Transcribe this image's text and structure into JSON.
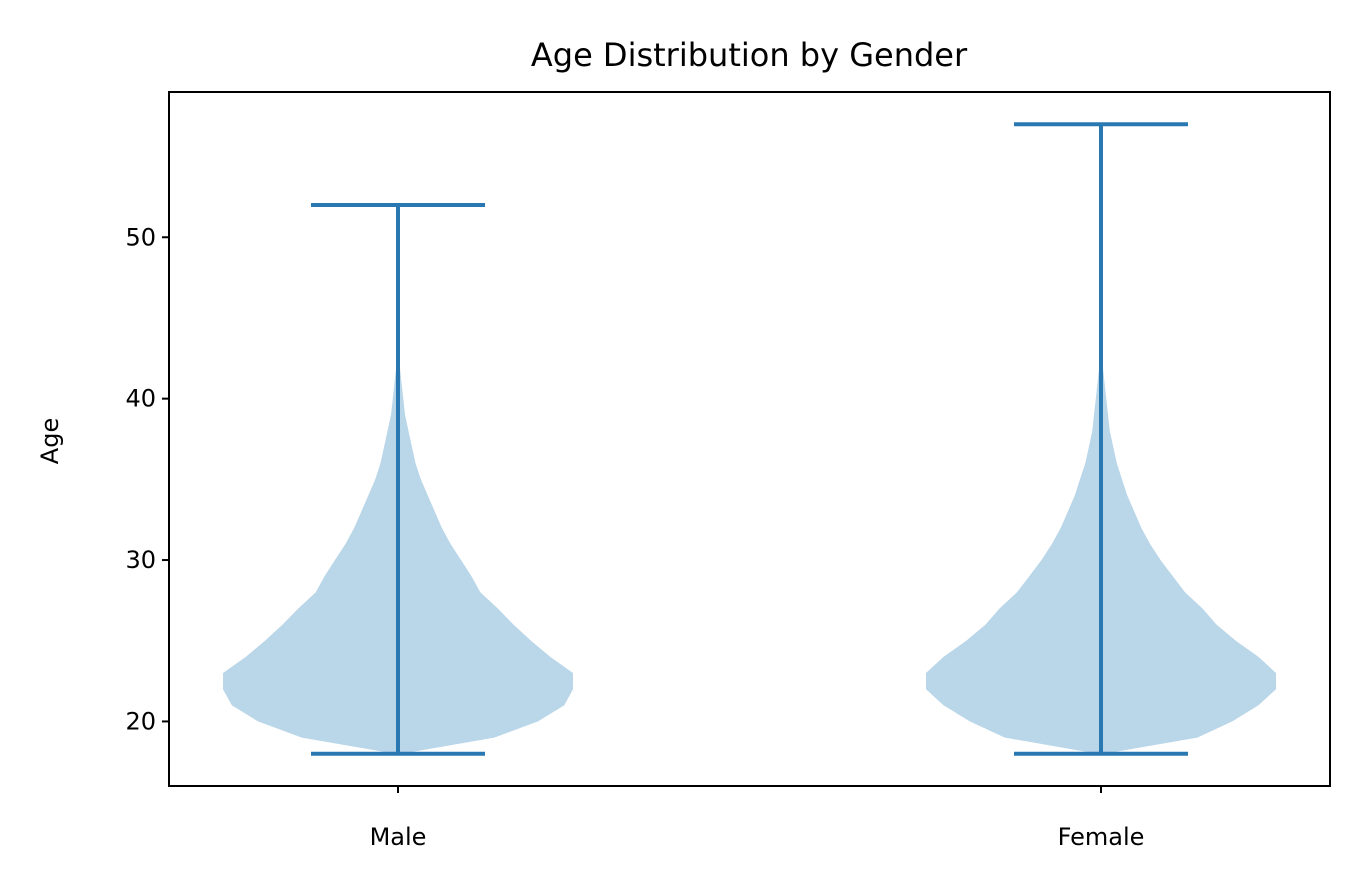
{
  "chart_data": {
    "type": "violin",
    "title": "Age Distribution by Gender",
    "xlabel": "",
    "ylabel": "Age",
    "ylim": [
      16.0,
      59.0
    ],
    "yticks": [
      20,
      30,
      40,
      50
    ],
    "categories": [
      "Male",
      "Female"
    ],
    "grid": false,
    "series": [
      {
        "category": "Male",
        "min": 18,
        "max": 52,
        "density": [
          [
            18,
            0.02
          ],
          [
            19,
            0.55
          ],
          [
            20,
            0.8
          ],
          [
            21,
            0.95
          ],
          [
            22,
            1.0
          ],
          [
            23,
            1.0
          ],
          [
            24,
            0.87
          ],
          [
            25,
            0.76
          ],
          [
            26,
            0.66
          ],
          [
            27,
            0.57
          ],
          [
            28,
            0.47
          ],
          [
            29,
            0.42
          ],
          [
            30,
            0.36
          ],
          [
            31,
            0.3
          ],
          [
            32,
            0.25
          ],
          [
            33,
            0.21
          ],
          [
            34,
            0.17
          ],
          [
            35,
            0.13
          ],
          [
            36,
            0.1
          ],
          [
            37,
            0.08
          ],
          [
            38,
            0.06
          ],
          [
            39,
            0.04
          ],
          [
            40,
            0.03
          ],
          [
            41,
            0.02
          ],
          [
            42,
            0.01
          ],
          [
            43.5,
            0.0
          ]
        ]
      },
      {
        "category": "Female",
        "min": 18,
        "max": 57,
        "density": [
          [
            18,
            0.02
          ],
          [
            19,
            0.55
          ],
          [
            20,
            0.75
          ],
          [
            21,
            0.9
          ],
          [
            22,
            1.0
          ],
          [
            23,
            1.0
          ],
          [
            24,
            0.9
          ],
          [
            25,
            0.77
          ],
          [
            26,
            0.66
          ],
          [
            27,
            0.58
          ],
          [
            28,
            0.48
          ],
          [
            29,
            0.41
          ],
          [
            30,
            0.34
          ],
          [
            31,
            0.28
          ],
          [
            32,
            0.23
          ],
          [
            33,
            0.19
          ],
          [
            34,
            0.15
          ],
          [
            35,
            0.12
          ],
          [
            36,
            0.09
          ],
          [
            37,
            0.07
          ],
          [
            38,
            0.05
          ],
          [
            39,
            0.04
          ],
          [
            40,
            0.03
          ],
          [
            41,
            0.02
          ],
          [
            42,
            0.01
          ],
          [
            43.5,
            0.0
          ]
        ]
      }
    ],
    "colors": {
      "body": "#bad6e9",
      "line": "#2a78b1"
    }
  }
}
